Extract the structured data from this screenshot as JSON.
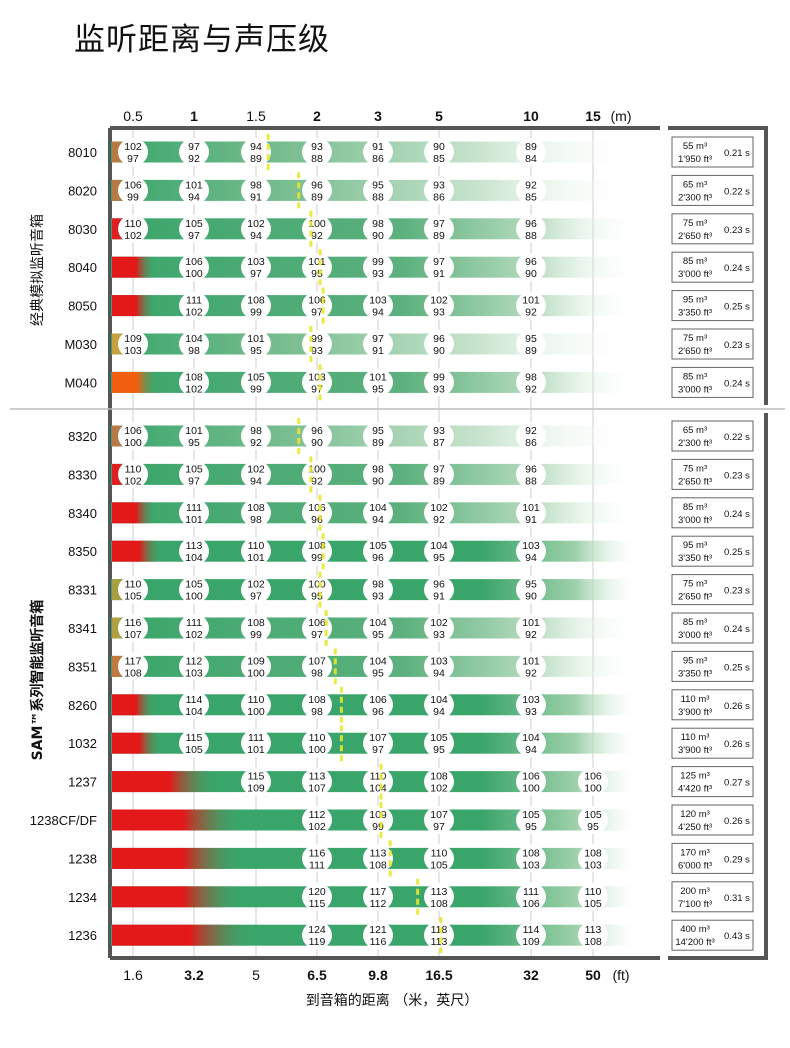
{
  "title": "监听距离与声压级",
  "chart_data": {
    "type": "table",
    "title": "监听距离与声压级",
    "xlabel": "到音箱的距离 （米，英尺）",
    "x_top_unit": "(m)",
    "x_bottom_unit": "(ft)",
    "x_ticks_m": [
      "0.5",
      "1",
      "1.5",
      "2",
      "3",
      "5",
      "10",
      "15"
    ],
    "x_ticks_m_bold": [
      false,
      true,
      false,
      true,
      true,
      true,
      true,
      true
    ],
    "x_ticks_ft": [
      "1.6",
      "3.2",
      "5",
      "6.5",
      "9.8",
      "16.5",
      "32",
      "50"
    ],
    "x_ticks_ft_bold": [
      false,
      true,
      false,
      true,
      true,
      true,
      true,
      true
    ],
    "label_columns_m": [
      "0.5",
      "1",
      "1.5",
      "2",
      "3",
      "5",
      "10",
      "15"
    ],
    "room_columns": [
      "volume_m3",
      "volume_ft3",
      "reverb_time_s"
    ],
    "groups": [
      {
        "name": "经典模拟监听音箱",
        "rows": [
          {
            "model": "8010",
            "spl": [
              [
                102,
                97
              ],
              [
                97,
                92
              ],
              [
                94,
                89
              ],
              [
                93,
                88
              ],
              [
                91,
                86
              ],
              [
                90,
                85
              ],
              [
                89,
                84
              ],
              null
            ],
            "red_until": 0.45,
            "color0": "#b87a45",
            "fade": "light",
            "marker": 1.6,
            "room": {
              "m3": "55 m³",
              "ft3": "1'950 ft³",
              "rt": "0.21 s"
            }
          },
          {
            "model": "8020",
            "spl": [
              [
                106,
                99
              ],
              [
                101,
                94
              ],
              [
                98,
                91
              ],
              [
                96,
                89
              ],
              [
                95,
                88
              ],
              [
                93,
                86
              ],
              [
                92,
                85
              ],
              null
            ],
            "red_until": 0.45,
            "color0": "#b87a45",
            "fade": "light",
            "marker": 1.85,
            "room": {
              "m3": "65 m³",
              "ft3": "2'300 ft³",
              "rt": "0.22 s"
            }
          },
          {
            "model": "8030",
            "spl": [
              [
                110,
                102
              ],
              [
                105,
                97
              ],
              [
                102,
                94
              ],
              [
                100,
                92
              ],
              [
                98,
                90
              ],
              [
                97,
                89
              ],
              [
                96,
                88
              ],
              null
            ],
            "red_until": 0.45,
            "color0": "#e02020",
            "fade": "mid",
            "marker": 1.95,
            "room": {
              "m3": "75 m³",
              "ft3": "2'650 ft³",
              "rt": "0.23 s"
            }
          },
          {
            "model": "8040",
            "spl": [
              null,
              [
                106,
                100
              ],
              [
                103,
                97
              ],
              [
                101,
                95
              ],
              [
                99,
                93
              ],
              [
                97,
                91
              ],
              [
                96,
                90
              ],
              null
            ],
            "red_until": 0.6,
            "color0": "#e31818",
            "fade": "mid",
            "marker": 2.05,
            "room": {
              "m3": "85 m³",
              "ft3": "3'000 ft³",
              "rt": "0.24 s"
            }
          },
          {
            "model": "8050",
            "spl": [
              [
                null
              ],
              [
                111,
                102
              ],
              [
                108,
                99
              ],
              [
                106,
                97
              ],
              [
                103,
                94
              ],
              [
                102,
                93
              ],
              [
                101,
                92
              ],
              null
            ],
            "red_until": 0.6,
            "color0": "#e31818",
            "fade": "mid",
            "marker": 2.1,
            "room": {
              "m3": "95 m³",
              "ft3": "3'350 ft³",
              "rt": "0.25 s"
            }
          },
          {
            "model": "M030",
            "spl": [
              [
                109,
                103
              ],
              [
                104,
                98
              ],
              [
                101,
                95
              ],
              [
                99,
                93
              ],
              [
                97,
                91
              ],
              [
                96,
                90
              ],
              [
                95,
                89
              ],
              null
            ],
            "red_until": 0.45,
            "color0": "#c8a040",
            "fade": "light",
            "marker": 1.95,
            "room": {
              "m3": "75 m³",
              "ft3": "2'650 ft³",
              "rt": "0.23 s"
            }
          },
          {
            "model": "M040",
            "spl": [
              null,
              [
                108,
                102
              ],
              [
                105,
                99
              ],
              [
                103,
                97
              ],
              [
                101,
                95
              ],
              [
                99,
                93
              ],
              [
                98,
                92
              ],
              null
            ],
            "red_until": 0.62,
            "color0": "#f06010",
            "fade": "mid",
            "marker": 2.05,
            "room": {
              "m3": "85 m³",
              "ft3": "3'000 ft³",
              "rt": "0.24 s"
            }
          }
        ]
      },
      {
        "name": "SAM™系列智能监听音箱",
        "rows": [
          {
            "model": "8320",
            "spl": [
              [
                106,
                100
              ],
              [
                101,
                95
              ],
              [
                98,
                92
              ],
              [
                96,
                90
              ],
              [
                95,
                89
              ],
              [
                93,
                87
              ],
              [
                92,
                86
              ],
              null
            ],
            "red_until": 0.45,
            "color0": "#b87a45",
            "fade": "light",
            "marker": 1.85,
            "room": {
              "m3": "65 m³",
              "ft3": "2'300 ft³",
              "rt": "0.22 s"
            }
          },
          {
            "model": "8330",
            "spl": [
              [
                110,
                102
              ],
              [
                105,
                97
              ],
              [
                102,
                94
              ],
              [
                100,
                92
              ],
              [
                98,
                90
              ],
              [
                97,
                89
              ],
              [
                96,
                88
              ],
              null
            ],
            "red_until": 0.45,
            "color0": "#e02020",
            "fade": "mid",
            "marker": 1.95,
            "room": {
              "m3": "75 m³",
              "ft3": "2'650 ft³",
              "rt": "0.23 s"
            }
          },
          {
            "model": "8340",
            "spl": [
              null,
              [
                111,
                101
              ],
              [
                108,
                98
              ],
              [
                106,
                96
              ],
              [
                104,
                94
              ],
              [
                102,
                92
              ],
              [
                101,
                91
              ],
              null
            ],
            "red_until": 0.6,
            "color0": "#e31818",
            "fade": "mid",
            "marker": 2.05,
            "room": {
              "m3": "85 m³",
              "ft3": "3'000 ft³",
              "rt": "0.24 s"
            }
          },
          {
            "model": "8350",
            "spl": [
              null,
              [
                113,
                104
              ],
              [
                110,
                101
              ],
              [
                108,
                99
              ],
              [
                105,
                96
              ],
              [
                104,
                95
              ],
              [
                103,
                94
              ],
              null
            ],
            "red_until": 0.65,
            "color0": "#e31818",
            "fade": "strong",
            "marker": 2.1,
            "room": {
              "m3": "95 m³",
              "ft3": "3'350 ft³",
              "rt": "0.25 s"
            }
          },
          {
            "model": "8331",
            "spl": [
              [
                110,
                105
              ],
              [
                105,
                100
              ],
              [
                102,
                97
              ],
              [
                100,
                95
              ],
              [
                98,
                93
              ],
              [
                96,
                91
              ],
              [
                95,
                90
              ],
              null
            ],
            "red_until": 0.45,
            "color0": "#a8a040",
            "fade": "strong",
            "marker": 2.05,
            "room": {
              "m3": "75 m³",
              "ft3": "2'650 ft³",
              "rt": "0.23 s"
            }
          },
          {
            "model": "8341",
            "spl": [
              [
                116,
                107
              ],
              [
                111,
                102
              ],
              [
                108,
                99
              ],
              [
                106,
                97
              ],
              [
                104,
                95
              ],
              [
                102,
                93
              ],
              [
                101,
                92
              ],
              null
            ],
            "red_until": 0.45,
            "color0": "#b0a040",
            "fade": "mid",
            "marker": 2.15,
            "room": {
              "m3": "85 m³",
              "ft3": "3'000 ft³",
              "rt": "0.24 s"
            }
          },
          {
            "model": "8351",
            "spl": [
              [
                117,
                108
              ],
              [
                112,
                103
              ],
              [
                109,
                100
              ],
              [
                107,
                98
              ],
              [
                104,
                95
              ],
              [
                103,
                94
              ],
              [
                101,
                92
              ],
              null
            ],
            "red_until": 0.45,
            "color0": "#c07a40",
            "fade": "mid",
            "marker": 2.3,
            "room": {
              "m3": "95 m³",
              "ft3": "3'350 ft³",
              "rt": "0.25 s"
            }
          },
          {
            "model": "8260",
            "spl": [
              null,
              [
                114,
                104
              ],
              [
                110,
                100
              ],
              [
                108,
                98
              ],
              [
                106,
                96
              ],
              [
                104,
                94
              ],
              [
                103,
                93
              ],
              null
            ],
            "red_until": 0.6,
            "color0": "#e31818",
            "fade": "strong",
            "marker": 2.4,
            "room": {
              "m3": "110 m³",
              "ft3": "3'900 ft³",
              "rt": "0.26 s"
            }
          },
          {
            "model": "1032",
            "spl": [
              null,
              [
                115,
                105
              ],
              [
                111,
                101
              ],
              [
                110,
                100
              ],
              [
                107,
                97
              ],
              [
                105,
                95
              ],
              [
                104,
                94
              ],
              null
            ],
            "red_until": 0.65,
            "color0": "#e31818",
            "fade": "strong",
            "marker": 2.4,
            "room": {
              "m3": "110 m³",
              "ft3": "3'900 ft³",
              "rt": "0.26 s"
            }
          },
          {
            "model": "1237",
            "spl": [
              null,
              null,
              [
                115,
                109
              ],
              [
                113,
                107
              ],
              [
                110,
                104
              ],
              [
                108,
                102
              ],
              [
                106,
                100
              ],
              [
                106,
                100
              ]
            ],
            "red_until": 1.1,
            "color0": "#e31818",
            "fade": "strong",
            "marker": 3.1,
            "room": {
              "m3": "125 m³",
              "ft3": "4'420 ft³",
              "rt": "0.27 s"
            }
          },
          {
            "model": "1238CF/DF",
            "spl": [
              null,
              null,
              null,
              [
                112,
                102
              ],
              [
                109,
                99
              ],
              [
                107,
                97
              ],
              [
                105,
                95
              ],
              [
                105,
                95
              ]
            ],
            "red_until": 1.3,
            "color0": "#e31818",
            "fade": "strong",
            "marker": 3.1,
            "room": {
              "m3": "120 m³",
              "ft3": "4'250 ft³",
              "rt": "0.26 s"
            }
          },
          {
            "model": "1238",
            "spl": [
              null,
              null,
              null,
              [
                116,
                111
              ],
              [
                113,
                108
              ],
              [
                110,
                105
              ],
              [
                108,
                103
              ],
              [
                108,
                103
              ]
            ],
            "red_until": 1.3,
            "color0": "#e31818",
            "fade": "strong",
            "marker": 3.4,
            "room": {
              "m3": "170 m³",
              "ft3": "6'000 ft³",
              "rt": "0.29 s"
            }
          },
          {
            "model": "1234",
            "spl": [
              null,
              null,
              null,
              [
                120,
                115
              ],
              [
                117,
                112
              ],
              [
                113,
                108
              ],
              [
                111,
                106
              ],
              [
                110,
                105
              ]
            ],
            "red_until": 1.3,
            "color0": "#e31818",
            "fade": "strong",
            "marker": 4.3,
            "room": {
              "m3": "200 m³",
              "ft3": "7'100 ft³",
              "rt": "0.31 s"
            }
          },
          {
            "model": "1236",
            "spl": [
              null,
              null,
              null,
              [
                124,
                119
              ],
              [
                121,
                116
              ],
              [
                118,
                113
              ],
              [
                114,
                109
              ],
              [
                113,
                108
              ]
            ],
            "red_until": 1.4,
            "color0": "#e31818",
            "fade": "strong",
            "marker": 5.1,
            "room": {
              "m3": "400 m³",
              "ft3": "14'200 ft³",
              "rt": "0.43 s"
            }
          }
        ]
      }
    ]
  }
}
